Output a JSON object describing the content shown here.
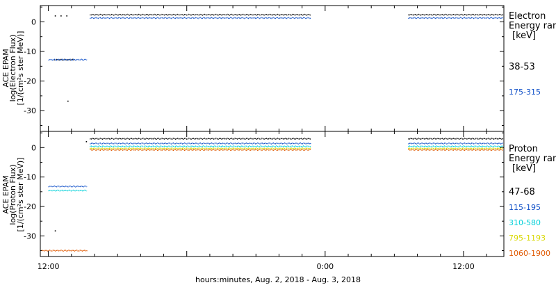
{
  "xaxis": {
    "label": "hours:minutes, Aug.  2, 2018 - Aug.  3, 2018",
    "tick_labels": [
      "12:00",
      "0:00",
      "12:00"
    ],
    "range_hours": [
      -0.7,
      39.5
    ],
    "label_positions_hours": [
      0,
      24,
      36
    ]
  },
  "panels": [
    {
      "ylabel": [
        "ACE EPAM",
        "log(Electron Flux)",
        "[1/(cm²s ster MeV)]"
      ],
      "ylim": [
        -37,
        5.5
      ],
      "yticks": [
        0,
        -10,
        -20,
        -30
      ],
      "legend_title": [
        "Electron",
        "Energy ranges",
        "[keV]"
      ],
      "series": [
        {
          "name": "38-53",
          "color": "#000000"
        },
        {
          "name": "175-315",
          "color": "#1050c8"
        }
      ],
      "chart_data": {
        "type": "scatter",
        "series": [
          {
            "name": "38-53",
            "segments": [
              {
                "x": [
                  0.5,
                  2.3
                ],
                "y": -12.8
              },
              {
                "x": [
                  3.6,
                  22.8
                ],
                "y": 2.4
              },
              {
                "x": [
                  31.2,
                  42.8
                ],
                "y": 2.4
              },
              {
                "x": [
                  44.2,
                  45.4
                ],
                "y": 2.4
              }
            ],
            "points": [
              [
                0.6,
                2.0
              ],
              [
                1.1,
                2.0
              ],
              [
                1.6,
                2.0
              ],
              [
                1.7,
                -26.8
              ]
            ]
          },
          {
            "name": "175-315",
            "segments": [
              {
                "x": [
                  0.0,
                  3.4
                ],
                "y": -12.8
              },
              {
                "x": [
                  3.6,
                  22.8
                ],
                "y": 1.3
              },
              {
                "x": [
                  31.2,
                  42.8
                ],
                "y": 1.3
              },
              {
                "x": [
                  44.2,
                  45.4
                ],
                "y": 1.3
              }
            ],
            "points": []
          }
        ]
      }
    },
    {
      "ylabel": [
        "ACE EPAM",
        "log(Proton Flux)",
        "[1/(cm²s ster MeV)]"
      ],
      "ylim": [
        -37,
        5.5
      ],
      "yticks": [
        0,
        -10,
        -20,
        -30
      ],
      "legend_title": [
        "Proton",
        "Energy ranges",
        "[keV]"
      ],
      "series": [
        {
          "name": "47-68",
          "color": "#000000"
        },
        {
          "name": "115-195",
          "color": "#1050c8"
        },
        {
          "name": "310-580",
          "color": "#00d0d8"
        },
        {
          "name": "795-1193",
          "color": "#d8d800"
        },
        {
          "name": "1060-1900",
          "color": "#e05800"
        }
      ],
      "chart_data": {
        "type": "scatter",
        "series": [
          {
            "name": "47-68",
            "segments": [
              {
                "x": [
                  3.6,
                  22.8
                ],
                "y": 3.0
              },
              {
                "x": [
                  31.2,
                  42.8
                ],
                "y": 3.0
              },
              {
                "x": [
                  44.2,
                  45.4
                ],
                "y": 3.0
              }
            ],
            "points": [
              [
                3.3,
                2.0
              ],
              [
                0.6,
                -28.3
              ]
            ]
          },
          {
            "name": "115-195",
            "segments": [
              {
                "x": [
                  0.0,
                  3.4
                ],
                "y": -13.2
              },
              {
                "x": [
                  3.6,
                  22.8
                ],
                "y": 1.4
              },
              {
                "x": [
                  31.2,
                  42.8
                ],
                "y": 1.4
              },
              {
                "x": [
                  44.2,
                  45.4
                ],
                "y": 1.4
              }
            ],
            "points": []
          },
          {
            "name": "310-580",
            "segments": [
              {
                "x": [
                  0.0,
                  3.4
                ],
                "y": -14.6
              },
              {
                "x": [
                  3.6,
                  22.8
                ],
                "y": 0.4
              },
              {
                "x": [
                  31.2,
                  42.8
                ],
                "y": 0.4
              },
              {
                "x": [
                  44.2,
                  45.4
                ],
                "y": 0.4
              }
            ],
            "points": []
          },
          {
            "name": "795-1193",
            "segments": [
              {
                "x": [
                  3.6,
                  22.8
                ],
                "y": -0.3
              },
              {
                "x": [
                  31.2,
                  42.8
                ],
                "y": -0.3
              },
              {
                "x": [
                  44.2,
                  45.4
                ],
                "y": -0.3
              }
            ],
            "points": []
          },
          {
            "name": "1060-1900",
            "segments": [
              {
                "x": [
                  -0.6,
                  3.4
                ],
                "y": -35.0
              },
              {
                "x": [
                  3.6,
                  22.8
                ],
                "y": -0.8
              },
              {
                "x": [
                  31.2,
                  42.8
                ],
                "y": -0.8
              },
              {
                "x": [
                  44.2,
                  45.4
                ],
                "y": -0.8
              }
            ],
            "points": []
          }
        ]
      }
    }
  ]
}
